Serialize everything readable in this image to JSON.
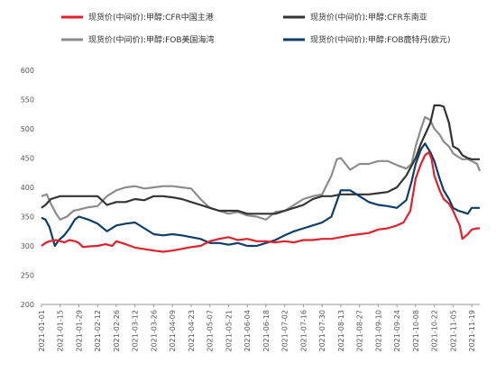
{
  "chart_data": {
    "type": "line",
    "title": "",
    "xlabel": "",
    "ylabel": "",
    "ylim": [
      200,
      600
    ],
    "yticks": [
      200,
      250,
      300,
      350,
      400,
      450,
      500,
      550,
      600
    ],
    "grid": "none",
    "legend_position": "top",
    "x_tick_labels": [
      "2021-01-01",
      "2021-01-15",
      "2021-01-29",
      "2021-02-12",
      "2021-02-26",
      "2021-03-12",
      "2021-03-26",
      "2021-04-09",
      "2021-04-23",
      "2021-05-07",
      "2021-05-21",
      "2021-06-04",
      "2021-06-18",
      "2021-07-02",
      "2021-07-16",
      "2021-07-30",
      "2021-08-13",
      "2021-08-27",
      "2021-09-10",
      "2021-09-24",
      "2021-10-08",
      "2021-10-22",
      "2021-11-05",
      "2021-11-19"
    ],
    "series": [
      {
        "name": "现货价(中间价):甲醇:CFR中国主港",
        "color": "#e0202a",
        "dates": [
          "2021-01-01",
          "2021-01-04",
          "2021-01-07",
          "2021-01-12",
          "2021-01-18",
          "2021-01-22",
          "2021-01-26",
          "2021-01-29",
          "2021-02-01",
          "2021-02-05",
          "2021-02-12",
          "2021-02-18",
          "2021-02-23",
          "2021-02-26",
          "2021-03-05",
          "2021-03-12",
          "2021-03-18",
          "2021-03-26",
          "2021-04-02",
          "2021-04-09",
          "2021-04-16",
          "2021-04-23",
          "2021-04-30",
          "2021-05-07",
          "2021-05-14",
          "2021-05-21",
          "2021-05-28",
          "2021-06-04",
          "2021-06-11",
          "2021-06-18",
          "2021-06-25",
          "2021-07-02",
          "2021-07-09",
          "2021-07-16",
          "2021-07-23",
          "2021-07-30",
          "2021-08-06",
          "2021-08-13",
          "2021-08-20",
          "2021-08-27",
          "2021-09-03",
          "2021-09-10",
          "2021-09-17",
          "2021-09-24",
          "2021-09-29",
          "2021-10-04",
          "2021-10-08",
          "2021-10-12",
          "2021-10-15",
          "2021-10-18",
          "2021-10-20",
          "2021-10-22",
          "2021-10-26",
          "2021-10-29",
          "2021-11-02",
          "2021-11-05",
          "2021-11-08",
          "2021-11-10",
          "2021-11-12",
          "2021-11-16",
          "2021-11-19",
          "2021-11-23",
          "2021-11-25"
        ],
        "values": [
          300,
          305,
          308,
          310,
          306,
          310,
          308,
          305,
          298,
          299,
          300,
          303,
          300,
          308,
          303,
          297,
          295,
          292,
          290,
          292,
          295,
          298,
          300,
          308,
          312,
          315,
          310,
          312,
          308,
          308,
          306,
          308,
          306,
          310,
          310,
          312,
          312,
          315,
          318,
          320,
          322,
          328,
          330,
          335,
          340,
          360,
          415,
          440,
          455,
          460,
          448,
          420,
          395,
          380,
          372,
          360,
          345,
          335,
          312,
          320,
          328,
          330,
          330
        ]
      },
      {
        "name": "现货价(中间价):甲醇:CFR东南亚",
        "color": "#333333",
        "dates": [
          "2021-01-01",
          "2021-01-04",
          "2021-01-08",
          "2021-01-15",
          "2021-01-22",
          "2021-01-29",
          "2021-02-05",
          "2021-02-12",
          "2021-02-19",
          "2021-02-26",
          "2021-03-05",
          "2021-03-12",
          "2021-03-19",
          "2021-03-26",
          "2021-04-02",
          "2021-04-09",
          "2021-04-16",
          "2021-04-23",
          "2021-04-30",
          "2021-05-07",
          "2021-05-14",
          "2021-05-21",
          "2021-05-28",
          "2021-06-04",
          "2021-06-11",
          "2021-06-18",
          "2021-06-25",
          "2021-07-02",
          "2021-07-09",
          "2021-07-16",
          "2021-07-23",
          "2021-07-30",
          "2021-08-06",
          "2021-08-13",
          "2021-08-20",
          "2021-08-27",
          "2021-09-03",
          "2021-09-10",
          "2021-09-17",
          "2021-09-24",
          "2021-10-01",
          "2021-10-08",
          "2021-10-12",
          "2021-10-15",
          "2021-10-19",
          "2021-10-22",
          "2021-10-26",
          "2021-10-29",
          "2021-11-02",
          "2021-11-05",
          "2021-11-09",
          "2021-11-12",
          "2021-11-16",
          "2021-11-19",
          "2021-11-25"
        ],
        "values": [
          365,
          370,
          380,
          385,
          385,
          385,
          385,
          385,
          370,
          375,
          375,
          380,
          378,
          385,
          385,
          383,
          380,
          375,
          370,
          365,
          360,
          360,
          360,
          355,
          355,
          355,
          355,
          360,
          365,
          370,
          380,
          385,
          385,
          388,
          388,
          388,
          388,
          390,
          392,
          400,
          420,
          450,
          475,
          490,
          510,
          540,
          540,
          538,
          510,
          470,
          465,
          455,
          450,
          448,
          448
        ]
      },
      {
        "name": "现货价(中间价):甲醇:FOB美国海湾",
        "color": "#8c8c8c",
        "dates": [
          "2021-01-01",
          "2021-01-05",
          "2021-01-08",
          "2021-01-12",
          "2021-01-15",
          "2021-01-20",
          "2021-01-25",
          "2021-01-29",
          "2021-02-05",
          "2021-02-12",
          "2021-02-19",
          "2021-02-26",
          "2021-03-05",
          "2021-03-12",
          "2021-03-19",
          "2021-03-26",
          "2021-04-02",
          "2021-04-09",
          "2021-04-16",
          "2021-04-23",
          "2021-04-30",
          "2021-05-07",
          "2021-05-14",
          "2021-05-21",
          "2021-05-28",
          "2021-06-04",
          "2021-06-11",
          "2021-06-18",
          "2021-06-25",
          "2021-07-02",
          "2021-07-09",
          "2021-07-16",
          "2021-07-23",
          "2021-07-30",
          "2021-08-06",
          "2021-08-10",
          "2021-08-13",
          "2021-08-20",
          "2021-08-27",
          "2021-09-03",
          "2021-09-10",
          "2021-09-17",
          "2021-09-24",
          "2021-10-01",
          "2021-10-05",
          "2021-10-08",
          "2021-10-12",
          "2021-10-15",
          "2021-10-19",
          "2021-10-22",
          "2021-10-26",
          "2021-10-29",
          "2021-11-02",
          "2021-11-05",
          "2021-11-09",
          "2021-11-12",
          "2021-11-16",
          "2021-11-19",
          "2021-11-23",
          "2021-11-25"
        ],
        "values": [
          385,
          388,
          372,
          355,
          345,
          350,
          360,
          362,
          366,
          368,
          385,
          395,
          400,
          402,
          398,
          400,
          402,
          402,
          400,
          398,
          380,
          365,
          360,
          355,
          358,
          352,
          350,
          345,
          358,
          360,
          370,
          380,
          385,
          388,
          420,
          448,
          450,
          430,
          440,
          440,
          445,
          445,
          438,
          432,
          440,
          470,
          500,
          520,
          515,
          500,
          490,
          478,
          470,
          458,
          452,
          448,
          448,
          445,
          440,
          428
        ]
      },
      {
        "name": "现货价(中间价):甲醇:FOB鹿特丹(欧元)",
        "color": "#0d3d6b",
        "dates": [
          "2021-01-01",
          "2021-01-04",
          "2021-01-07",
          "2021-01-11",
          "2021-01-14",
          "2021-01-18",
          "2021-01-22",
          "2021-01-26",
          "2021-01-29",
          "2021-02-05",
          "2021-02-12",
          "2021-02-19",
          "2021-02-26",
          "2021-03-05",
          "2021-03-12",
          "2021-03-19",
          "2021-03-26",
          "2021-04-02",
          "2021-04-09",
          "2021-04-16",
          "2021-04-23",
          "2021-04-30",
          "2021-05-07",
          "2021-05-14",
          "2021-05-21",
          "2021-05-28",
          "2021-06-04",
          "2021-06-11",
          "2021-06-18",
          "2021-06-25",
          "2021-07-02",
          "2021-07-09",
          "2021-07-16",
          "2021-07-23",
          "2021-07-30",
          "2021-08-06",
          "2021-08-13",
          "2021-08-20",
          "2021-08-27",
          "2021-09-03",
          "2021-09-10",
          "2021-09-17",
          "2021-09-24",
          "2021-10-01",
          "2021-10-05",
          "2021-10-08",
          "2021-10-12",
          "2021-10-15",
          "2021-10-19",
          "2021-10-22",
          "2021-10-26",
          "2021-10-29",
          "2021-11-02",
          "2021-11-05",
          "2021-11-09",
          "2021-11-12",
          "2021-11-16",
          "2021-11-19",
          "2021-11-25"
        ],
        "values": [
          348,
          345,
          332,
          300,
          310,
          318,
          330,
          345,
          350,
          345,
          338,
          325,
          335,
          338,
          340,
          330,
          320,
          318,
          320,
          318,
          315,
          312,
          305,
          305,
          302,
          305,
          300,
          300,
          305,
          310,
          318,
          325,
          330,
          335,
          340,
          350,
          395,
          395,
          385,
          375,
          370,
          368,
          365,
          378,
          410,
          440,
          465,
          475,
          460,
          445,
          415,
          395,
          380,
          365,
          360,
          358,
          355,
          365,
          365
        ]
      }
    ]
  }
}
